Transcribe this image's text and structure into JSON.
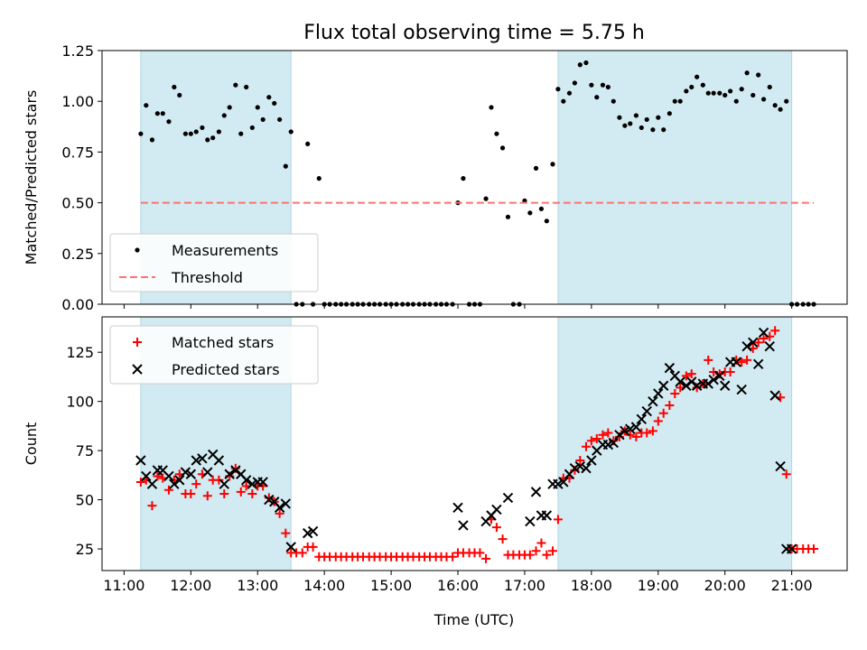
{
  "figure": {
    "title": "Flux total observing time = 5.75 h",
    "xlabel": "Time (UTC)",
    "x_tick_labels": [
      "11:00",
      "12:00",
      "13:00",
      "14:00",
      "15:00",
      "16:00",
      "17:00",
      "18:00",
      "19:00",
      "20:00",
      "21:00"
    ]
  },
  "chart_data": [
    {
      "type": "scatter",
      "panel": "top",
      "ylabel": "Matched/Predicted stars",
      "x_unit": "hours UTC",
      "xlim": [
        10.67,
        21.83
      ],
      "ylim": [
        0,
        1.25
      ],
      "y_ticks": [
        "0.00",
        "0.25",
        "0.50",
        "0.75",
        "1.00",
        "1.25"
      ],
      "shaded_intervals": [
        [
          11.25,
          13.5
        ],
        [
          17.5,
          21.0
        ]
      ],
      "shade_color": "#add8e6",
      "series": [
        {
          "name": "Measurements",
          "marker": "dot",
          "color": "#000000",
          "x": [
            11.25,
            11.33,
            11.42,
            11.5,
            11.58,
            11.67,
            11.75,
            11.83,
            11.92,
            12.0,
            12.08,
            12.17,
            12.25,
            12.33,
            12.42,
            12.5,
            12.58,
            12.67,
            12.75,
            12.83,
            12.92,
            13.0,
            13.08,
            13.17,
            13.25,
            13.33,
            13.42,
            13.5,
            13.58,
            13.67,
            13.75,
            13.83,
            13.92,
            14.0,
            14.08,
            14.17,
            14.25,
            14.33,
            14.42,
            14.5,
            14.58,
            14.67,
            14.75,
            14.83,
            14.92,
            15.0,
            15.08,
            15.17,
            15.25,
            15.33,
            15.42,
            15.5,
            15.58,
            15.67,
            15.75,
            15.83,
            15.92,
            16.0,
            16.08,
            16.17,
            16.25,
            16.33,
            16.42,
            16.5,
            16.58,
            16.67,
            16.75,
            16.83,
            16.92,
            17.0,
            17.08,
            17.17,
            17.25,
            17.33,
            17.42,
            17.5,
            17.58,
            17.67,
            17.75,
            17.83,
            17.92,
            18.0,
            18.08,
            18.17,
            18.25,
            18.33,
            18.42,
            18.5,
            18.58,
            18.67,
            18.75,
            18.83,
            18.92,
            19.0,
            19.08,
            19.17,
            19.25,
            19.33,
            19.42,
            19.5,
            19.58,
            19.67,
            19.75,
            19.83,
            19.92,
            20.0,
            20.08,
            20.17,
            20.25,
            20.33,
            20.42,
            20.5,
            20.58,
            20.67,
            20.75,
            20.83,
            20.92,
            21.0,
            21.08,
            21.17,
            21.25,
            21.33
          ],
          "y": [
            0.84,
            0.98,
            0.81,
            0.94,
            0.94,
            0.9,
            1.07,
            1.03,
            0.84,
            0.84,
            0.85,
            0.87,
            0.81,
            0.82,
            0.85,
            0.93,
            0.97,
            1.08,
            0.84,
            1.07,
            0.87,
            0.97,
            0.91,
            1.02,
            0.99,
            0.91,
            0.68,
            0.85,
            0.0,
            0.0,
            0.79,
            0.0,
            0.62,
            0.0,
            0.0,
            0.0,
            0.0,
            0.0,
            0.0,
            0.0,
            0.0,
            0.0,
            0.0,
            0.0,
            0.0,
            0.0,
            0.0,
            0.0,
            0.0,
            0.0,
            0.0,
            0.0,
            0.0,
            0.0,
            0.0,
            0.0,
            0.0,
            0.5,
            0.62,
            0.0,
            0.0,
            0.0,
            0.52,
            0.97,
            0.84,
            0.77,
            0.43,
            0.0,
            0.0,
            0.51,
            0.45,
            0.67,
            0.47,
            0.41,
            0.69,
            1.06,
            1.0,
            1.04,
            1.09,
            1.18,
            1.19,
            1.08,
            1.02,
            1.08,
            1.07,
            1.0,
            0.92,
            0.88,
            0.89,
            0.93,
            0.87,
            0.91,
            0.86,
            0.92,
            0.86,
            0.94,
            1.0,
            1.0,
            1.05,
            1.07,
            1.12,
            1.08,
            1.04,
            1.04,
            1.04,
            1.03,
            1.05,
            1.0,
            1.06,
            1.14,
            1.03,
            1.13,
            1.01,
            1.07,
            0.98,
            0.96,
            1.0,
            0.0,
            0.0,
            0.0,
            0.0,
            0.0
          ]
        },
        {
          "name": "Threshold",
          "marker": "dashed-line",
          "color": "#ff7272",
          "x": [
            11.25,
            21.33
          ],
          "y": [
            0.5,
            0.5
          ]
        }
      ],
      "legend": {
        "placement": "lower-left",
        "entries": [
          "Measurements",
          "Threshold"
        ]
      }
    },
    {
      "type": "scatter",
      "panel": "bottom",
      "ylabel": "Count",
      "x_unit": "hours UTC",
      "xlim": [
        10.67,
        21.83
      ],
      "ylim": [
        14,
        143
      ],
      "y_ticks": [
        "25",
        "50",
        "75",
        "100",
        "125"
      ],
      "shaded_intervals": [
        [
          11.25,
          13.5
        ],
        [
          17.5,
          21.0
        ]
      ],
      "shade_color": "#add8e6",
      "series": [
        {
          "name": "Matched stars",
          "marker": "plus",
          "color": "#ff0000",
          "x": [
            11.25,
            11.33,
            11.42,
            11.5,
            11.58,
            11.67,
            11.75,
            11.83,
            11.92,
            12.0,
            12.08,
            12.17,
            12.25,
            12.33,
            12.42,
            12.5,
            12.58,
            12.67,
            12.75,
            12.83,
            12.92,
            13.0,
            13.08,
            13.17,
            13.25,
            13.33,
            13.42,
            13.5,
            13.58,
            13.67,
            13.75,
            13.83,
            13.92,
            14.0,
            14.08,
            14.17,
            14.25,
            14.33,
            14.42,
            14.5,
            14.58,
            14.67,
            14.75,
            14.83,
            14.92,
            15.0,
            15.08,
            15.17,
            15.25,
            15.33,
            15.42,
            15.5,
            15.58,
            15.67,
            15.75,
            15.83,
            15.92,
            16.0,
            16.08,
            16.17,
            16.25,
            16.33,
            16.42,
            16.5,
            16.58,
            16.67,
            16.75,
            16.83,
            16.92,
            17.0,
            17.08,
            17.17,
            17.25,
            17.33,
            17.42,
            17.5,
            17.58,
            17.67,
            17.75,
            17.83,
            17.92,
            18.0,
            18.08,
            18.17,
            18.25,
            18.33,
            18.42,
            18.5,
            18.58,
            18.67,
            18.75,
            18.83,
            18.92,
            19.0,
            19.08,
            19.17,
            19.25,
            19.33,
            19.42,
            19.5,
            19.58,
            19.67,
            19.75,
            19.83,
            19.92,
            20.0,
            20.08,
            20.17,
            20.25,
            20.33,
            20.42,
            20.5,
            20.58,
            20.67,
            20.75,
            20.83,
            20.92,
            21.0,
            21.08,
            21.17,
            21.25,
            21.33
          ],
          "y": [
            59,
            60,
            47,
            62,
            61,
            55,
            60,
            63,
            53,
            53,
            58,
            63,
            52,
            60,
            60,
            53,
            62,
            66,
            54,
            57,
            53,
            57,
            57,
            51,
            49,
            43,
            33,
            23,
            23,
            23,
            26,
            26,
            21,
            21,
            21,
            21,
            21,
            21,
            21,
            21,
            21,
            21,
            21,
            21,
            21,
            21,
            21,
            21,
            21,
            21,
            21,
            21,
            21,
            21,
            21,
            21,
            21,
            23,
            23,
            23,
            23,
            23,
            20,
            40,
            36,
            30,
            22,
            22,
            22,
            22,
            22,
            24,
            28,
            22,
            24,
            40,
            61,
            61,
            65,
            70,
            77,
            80,
            81,
            83,
            84,
            80,
            82,
            85,
            83,
            82,
            84,
            84,
            85,
            90,
            94,
            98,
            104,
            107,
            113,
            114,
            107,
            109,
            121,
            115,
            114,
            115,
            115,
            121,
            120,
            121,
            127,
            130,
            132,
            133,
            136,
            102,
            63,
            25,
            25,
            25,
            25,
            25
          ]
        },
        {
          "name": "Predicted stars",
          "marker": "x",
          "color": "#000000",
          "x": [
            11.25,
            11.33,
            11.42,
            11.5,
            11.58,
            11.67,
            11.75,
            11.83,
            11.92,
            12.0,
            12.08,
            12.17,
            12.25,
            12.33,
            12.42,
            12.5,
            12.58,
            12.67,
            12.75,
            12.83,
            12.92,
            13.0,
            13.08,
            13.17,
            13.25,
            13.33,
            13.42,
            13.5,
            13.75,
            13.83,
            16.0,
            16.08,
            16.42,
            16.5,
            16.58,
            16.75,
            17.08,
            17.17,
            17.25,
            17.33,
            17.42,
            17.5,
            17.58,
            17.67,
            17.75,
            17.83,
            17.92,
            18.0,
            18.08,
            18.17,
            18.25,
            18.33,
            18.42,
            18.5,
            18.58,
            18.67,
            18.75,
            18.83,
            18.92,
            19.0,
            19.08,
            19.17,
            19.25,
            19.33,
            19.42,
            19.5,
            19.58,
            19.67,
            19.75,
            19.83,
            19.92,
            20.0,
            20.08,
            20.17,
            20.25,
            20.33,
            20.42,
            20.5,
            20.58,
            20.67,
            20.75,
            20.83,
            20.92,
            21.0
          ],
          "y": [
            70,
            62,
            58,
            65,
            65,
            62,
            58,
            60,
            64,
            63,
            70,
            71,
            64,
            73,
            70,
            58,
            63,
            65,
            63,
            60,
            58,
            59,
            59,
            50,
            49,
            46,
            48,
            26,
            33,
            34,
            46,
            37,
            39,
            42,
            45,
            51,
            39,
            54,
            42,
            42,
            58,
            58,
            59,
            63,
            66,
            67,
            66,
            70,
            75,
            78,
            78,
            79,
            83,
            85,
            86,
            87,
            91,
            95,
            100,
            104,
            108,
            117,
            113,
            110,
            108,
            110,
            108,
            109,
            109,
            111,
            113,
            108,
            120,
            120,
            106,
            128,
            130,
            119,
            135,
            128,
            103,
            67,
            25,
            25
          ]
        }
      ],
      "legend": {
        "placement": "upper-left",
        "entries": [
          "Matched stars",
          "Predicted stars"
        ]
      }
    }
  ]
}
